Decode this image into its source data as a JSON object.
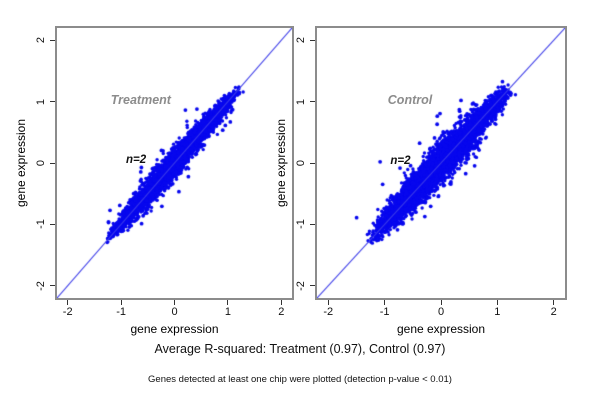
{
  "figure": {
    "background": "#ffffff",
    "captions": {
      "r_squared": "Average R-squared: Treatment (0.97), Control (0.97)",
      "note": "Genes detected at least one chip were plotted (detection p-value < 0.01)"
    }
  },
  "chart_data": [
    {
      "type": "scatter",
      "title": "Treatment",
      "annotation": "n=2",
      "n_chips": 2,
      "r_squared": 0.97,
      "xlabel": "gene expression",
      "ylabel": "gene expression",
      "xlim": [
        -2.2,
        2.2
      ],
      "ylim": [
        -2.2,
        2.2
      ],
      "xticks": [
        -2,
        -1,
        0,
        1,
        2
      ],
      "yticks": [
        -2,
        -1,
        0,
        1,
        2
      ],
      "grid": false,
      "identity_line": true,
      "point_color": "#0707ee",
      "line_color": "#3b3be8",
      "label_color": "#8c8c8c",
      "label_pos": [
        -0.63,
        1.02
      ],
      "annotation_pos": [
        -0.72,
        0.05
      ],
      "cloud": {
        "seed": 101,
        "n_points": 4200,
        "along_center": -0.02,
        "along_half_span": 1.26,
        "perp_sd": 0.055,
        "outlier_count": 60,
        "outlier_sd": 0.16
      }
    },
    {
      "type": "scatter",
      "title": "Control",
      "annotation": "n=2",
      "n_chips": 2,
      "r_squared": 0.97,
      "xlabel": "gene expression",
      "ylabel": "gene expression",
      "xlim": [
        -2.2,
        2.2
      ],
      "ylim": [
        -2.2,
        2.2
      ],
      "xticks": [
        -2,
        -1,
        0,
        1,
        2
      ],
      "yticks": [
        -2,
        -1,
        0,
        1,
        2
      ],
      "grid": false,
      "identity_line": true,
      "point_color": "#0707ee",
      "line_color": "#3b3be8",
      "label_color": "#8c8c8c",
      "label_pos": [
        -0.55,
        1.02
      ],
      "annotation_pos": [
        -0.72,
        0.03
      ],
      "cloud": {
        "seed": 202,
        "n_points": 5200,
        "along_center": -0.02,
        "along_half_span": 1.28,
        "perp_sd": 0.075,
        "outlier_count": 95,
        "outlier_sd": 0.2
      }
    }
  ]
}
